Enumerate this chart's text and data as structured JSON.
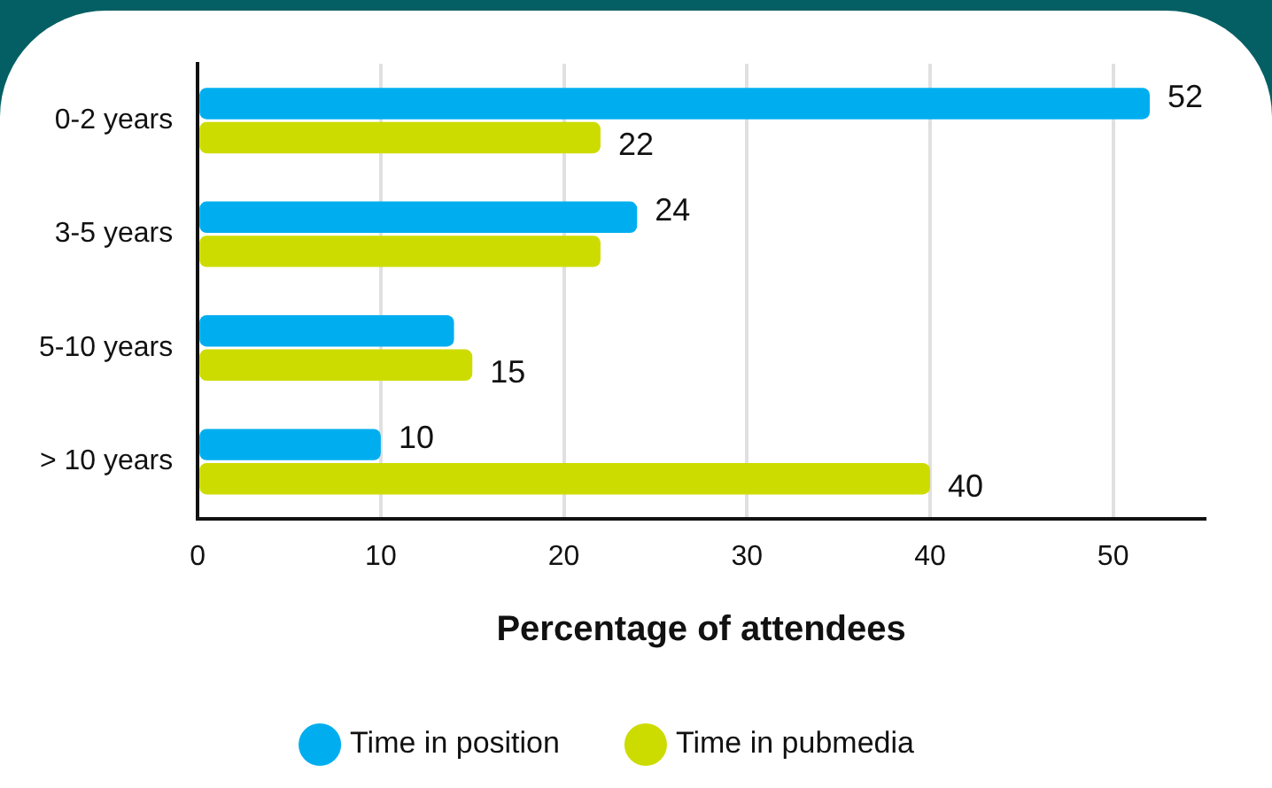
{
  "chart_data": {
    "type": "bar",
    "orientation": "horizontal",
    "xlabel": "Percentage of attendees",
    "categories": [
      "0-2 years",
      "3-5 years",
      "5-10 years",
      "> 10 years"
    ],
    "series": [
      {
        "name": "Time in position",
        "color": "#00aeef",
        "values": [
          52,
          24,
          14,
          10
        ],
        "value_labels": [
          "52",
          "24",
          null,
          "10"
        ]
      },
      {
        "name": "Time in pubmedia",
        "color": "#cddc00",
        "values": [
          22,
          22,
          15,
          40
        ],
        "value_labels": [
          "22",
          null,
          "15",
          "40"
        ]
      }
    ],
    "xlim": [
      0,
      55
    ],
    "xticks": [
      0,
      10,
      20,
      30,
      40,
      50
    ],
    "grid": "x",
    "legend": "bottom"
  }
}
